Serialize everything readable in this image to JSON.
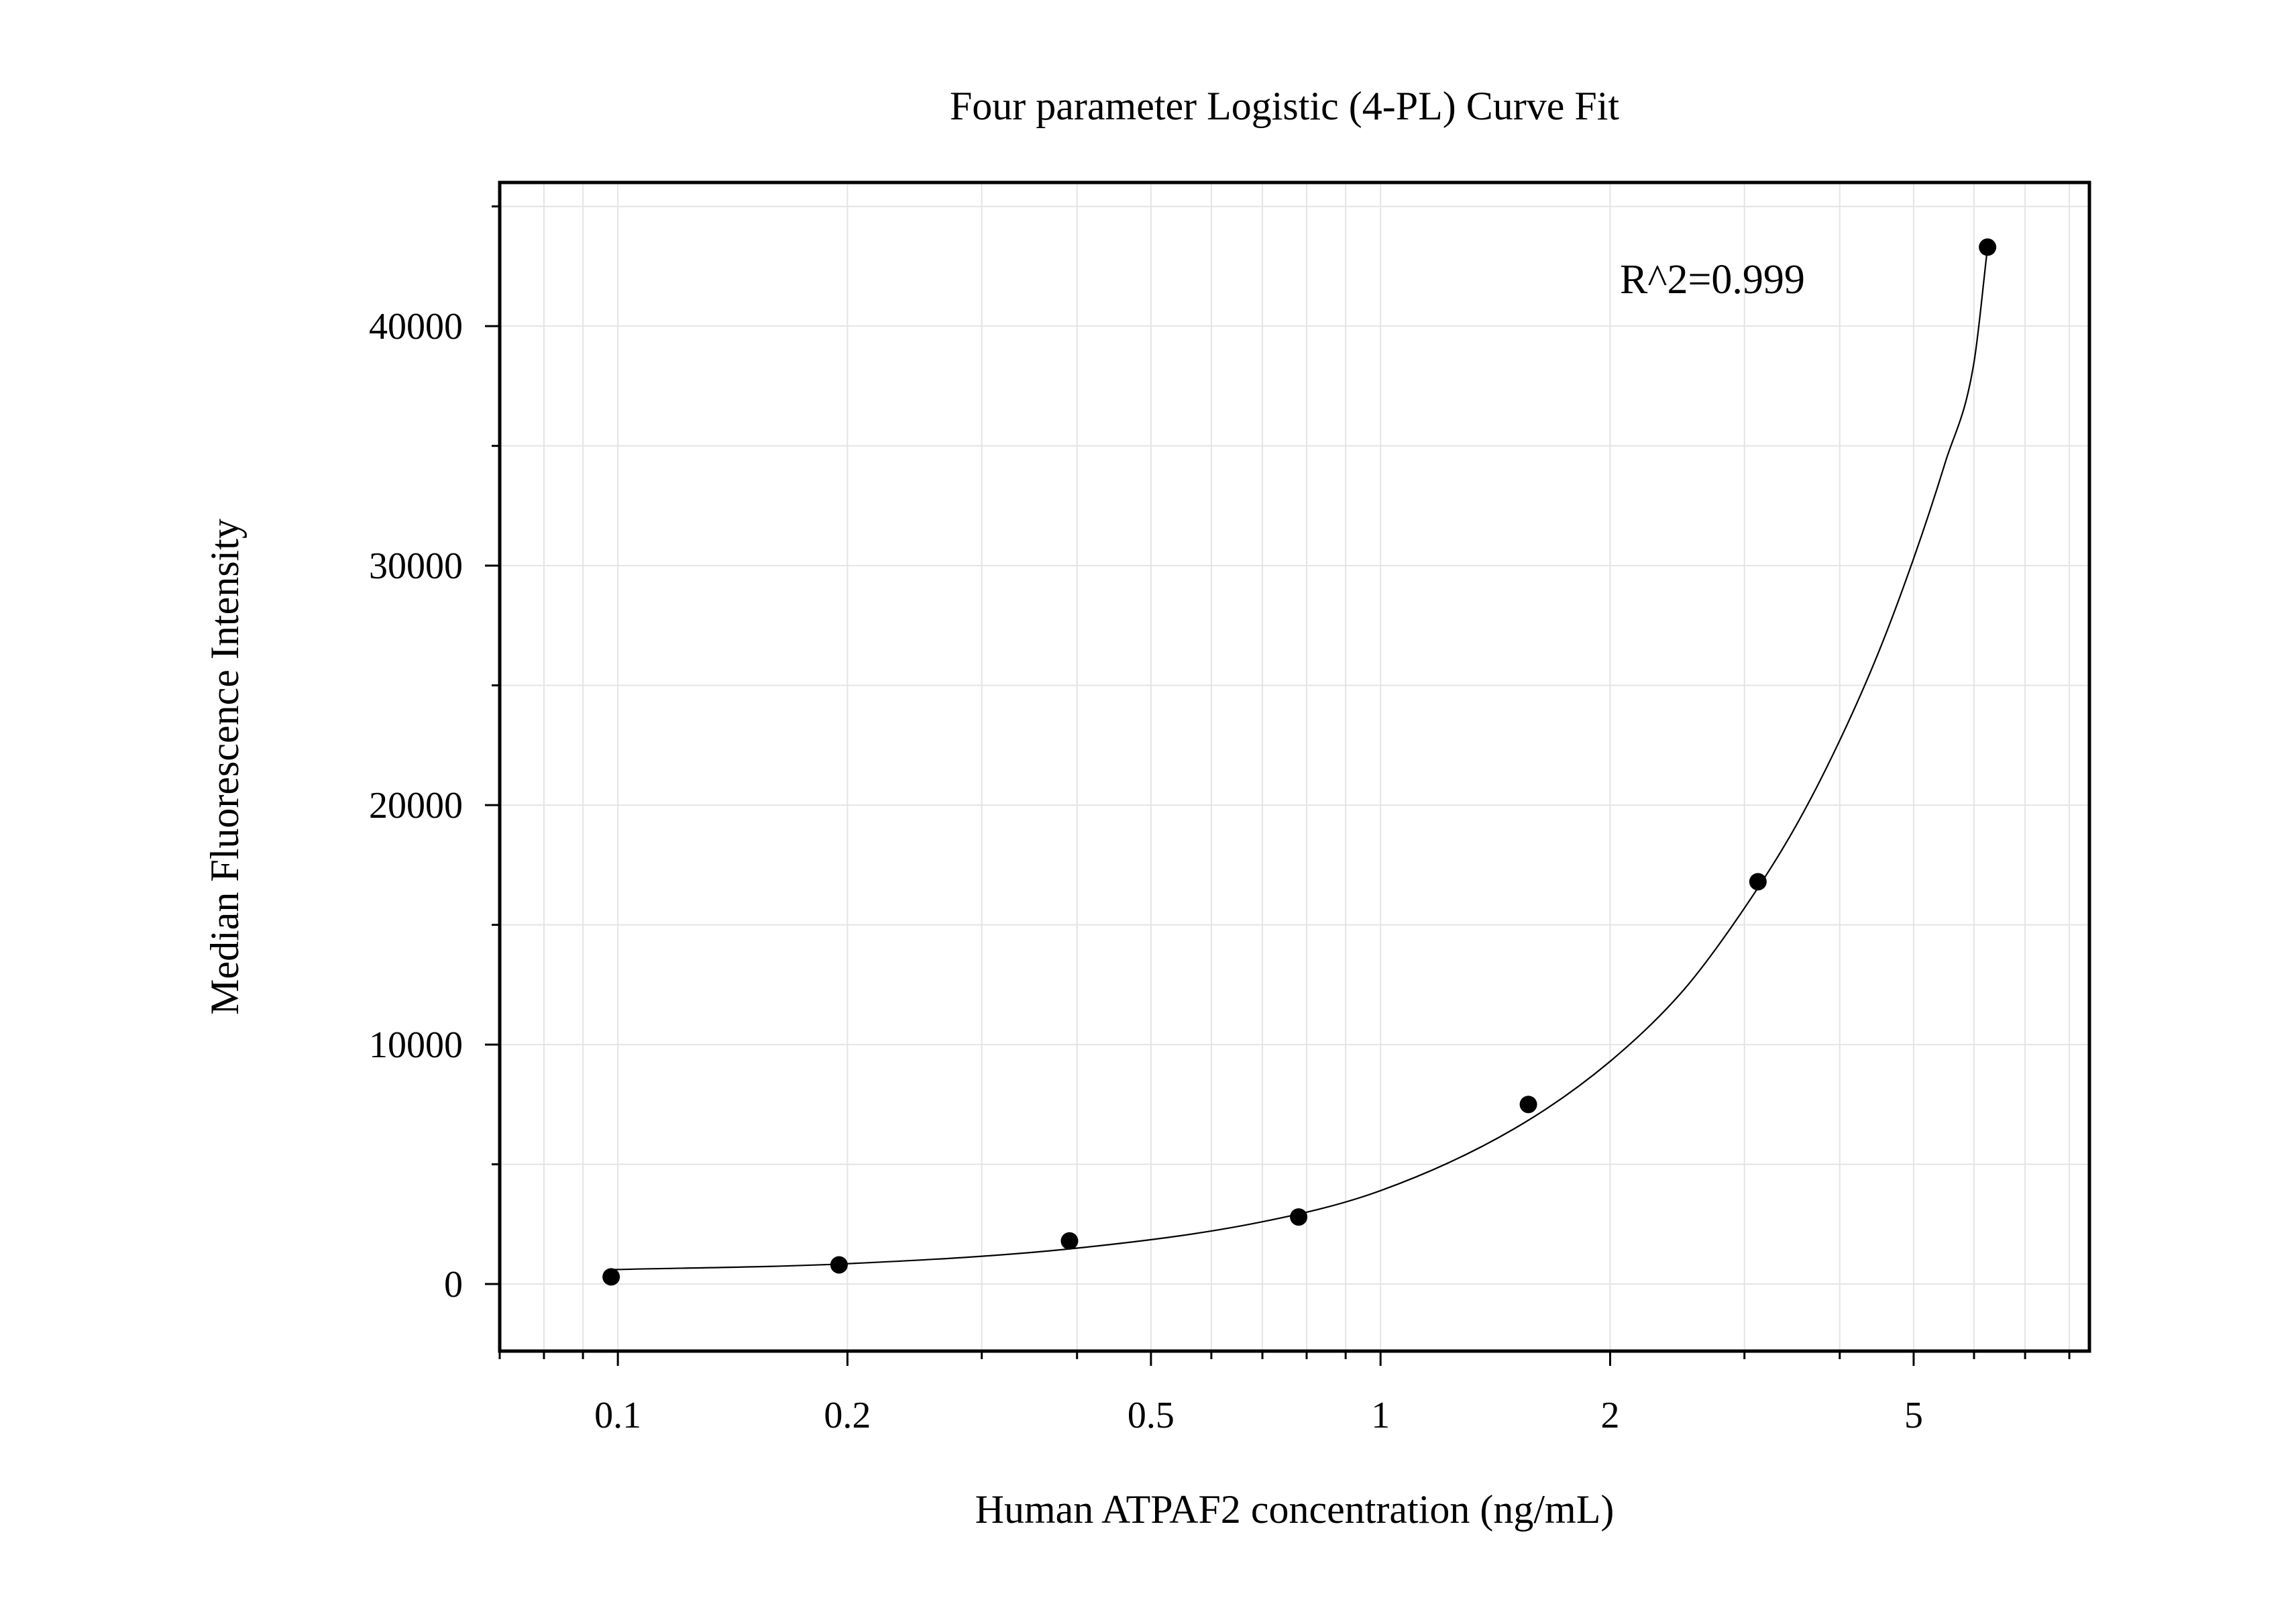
{
  "chart_data": {
    "type": "scatter",
    "title": "Four parameter Logistic (4-PL) Curve Fit",
    "xlabel": "Human ATPAF2 concentration (ng/mL)",
    "ylabel": "Median Fluorescence Intensity",
    "xscale": "log",
    "xlim": [
      0.07,
      8.5
    ],
    "ylim": [
      -2800,
      46000
    ],
    "xticks": [
      {
        "value": 0.1,
        "label": "0.1"
      },
      {
        "value": 0.2,
        "label": "0.2"
      },
      {
        "value": 0.5,
        "label": "0.5"
      },
      {
        "value": 1,
        "label": "1"
      },
      {
        "value": 2,
        "label": "2"
      },
      {
        "value": 5,
        "label": "5"
      }
    ],
    "yticks": [
      {
        "value": 0,
        "label": "0"
      },
      {
        "value": 10000,
        "label": "10000"
      },
      {
        "value": 20000,
        "label": "20000"
      },
      {
        "value": 30000,
        "label": "30000"
      },
      {
        "value": 40000,
        "label": "40000"
      }
    ],
    "grid": true,
    "legend": "none",
    "series": [
      {
        "kind": "points",
        "x": [
          0.098,
          0.195,
          0.391,
          0.781,
          1.5625,
          3.125,
          6.25
        ],
        "y": [
          300,
          800,
          1800,
          2800,
          7500,
          16800,
          43300
        ]
      },
      {
        "kind": "fit-line",
        "x": [
          0.098,
          0.2,
          0.4,
          0.7,
          1.0,
          1.5,
          2.0,
          2.5,
          3.0,
          3.5,
          4.0,
          4.5,
          5.0,
          5.5,
          6.0,
          6.25
        ],
        "y": [
          600,
          850,
          1500,
          2600,
          3900,
          6500,
          9300,
          12300,
          15700,
          19100,
          22700,
          26400,
          30300,
          34300,
          38500,
          43300
        ]
      }
    ],
    "annotations": [
      {
        "text": "R^2=0.999",
        "position": "top-right"
      }
    ],
    "colors": {
      "points": "#000000",
      "line": "#000000",
      "grid": "#e4e4e4",
      "frame": "#000000"
    }
  }
}
